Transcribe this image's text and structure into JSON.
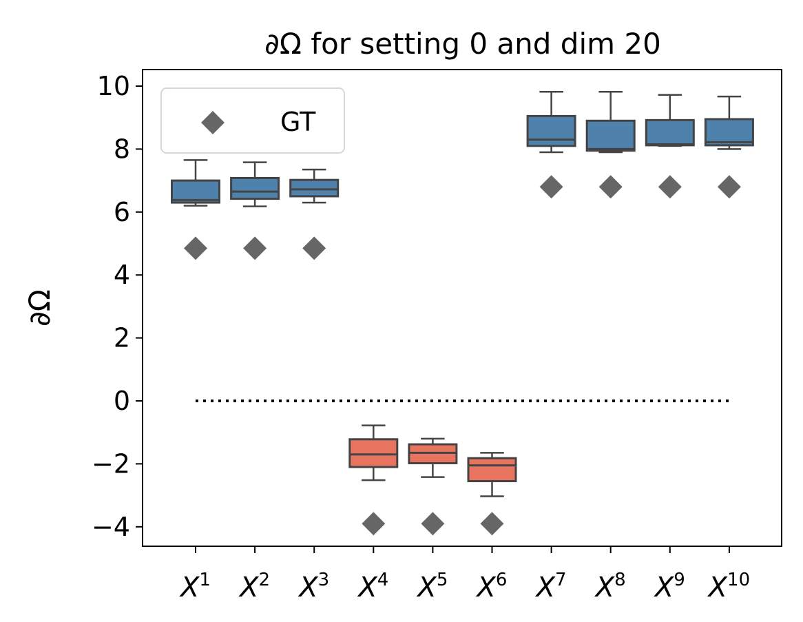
{
  "chart_data": {
    "type": "box",
    "title": "∂Ω for setting 0 and dim 20",
    "ylabel": "∂Ω",
    "xlabel": "",
    "ylim": [
      -4.6,
      10.5
    ],
    "yticks": [
      -4,
      -2,
      0,
      2,
      4,
      6,
      8,
      10
    ],
    "ytick_labels": [
      "−4",
      "−2",
      "0",
      "2",
      "4",
      "6",
      "8",
      "10"
    ],
    "categories": [
      {
        "base": "X",
        "sup": "1"
      },
      {
        "base": "X",
        "sup": "2"
      },
      {
        "base": "X",
        "sup": "3"
      },
      {
        "base": "X",
        "sup": "4"
      },
      {
        "base": "X",
        "sup": "5"
      },
      {
        "base": "X",
        "sup": "6"
      },
      {
        "base": "X",
        "sup": "7"
      },
      {
        "base": "X",
        "sup": "8"
      },
      {
        "base": "X",
        "sup": "9"
      },
      {
        "base": "X",
        "sup": "10"
      }
    ],
    "boxes": [
      {
        "whisker_low": 6.2,
        "q1": 6.3,
        "median": 6.38,
        "q3": 7.0,
        "whisker_high": 7.65,
        "color": "#4f81ad"
      },
      {
        "whisker_low": 6.18,
        "q1": 6.42,
        "median": 6.65,
        "q3": 7.08,
        "whisker_high": 7.58,
        "color": "#4f81ad"
      },
      {
        "whisker_low": 6.3,
        "q1": 6.5,
        "median": 6.72,
        "q3": 7.02,
        "whisker_high": 7.35,
        "color": "#4f81ad"
      },
      {
        "whisker_low": -2.52,
        "q1": -2.1,
        "median": -1.7,
        "q3": -1.22,
        "whisker_high": -0.78,
        "color": "#e8735f"
      },
      {
        "whisker_low": -2.42,
        "q1": -1.98,
        "median": -1.65,
        "q3": -1.38,
        "whisker_high": -1.2,
        "color": "#e8735f"
      },
      {
        "whisker_low": -3.03,
        "q1": -2.55,
        "median": -2.05,
        "q3": -1.82,
        "whisker_high": -1.65,
        "color": "#e8735f"
      },
      {
        "whisker_low": 7.9,
        "q1": 8.1,
        "median": 8.3,
        "q3": 9.05,
        "whisker_high": 9.82,
        "color": "#4f81ad"
      },
      {
        "whisker_low": 7.9,
        "q1": 7.95,
        "median": 8.0,
        "q3": 8.9,
        "whisker_high": 9.82,
        "color": "#4f81ad"
      },
      {
        "whisker_low": 8.1,
        "q1": 8.12,
        "median": 8.15,
        "q3": 8.92,
        "whisker_high": 9.72,
        "color": "#4f81ad"
      },
      {
        "whisker_low": 8.0,
        "q1": 8.12,
        "median": 8.22,
        "q3": 8.95,
        "whisker_high": 9.67,
        "color": "#4f81ad"
      }
    ],
    "gt": {
      "name": "GT",
      "values": [
        4.85,
        4.85,
        4.85,
        -3.9,
        -3.9,
        -3.9,
        6.8,
        6.8,
        6.8,
        6.8
      ],
      "color": "#666666",
      "marker": "diamond"
    },
    "reference_line": {
      "y": 0,
      "style": "dotted",
      "color": "#000000"
    },
    "legend": {
      "placement": "upper-left",
      "entries": [
        "GT"
      ]
    },
    "grid": false
  }
}
